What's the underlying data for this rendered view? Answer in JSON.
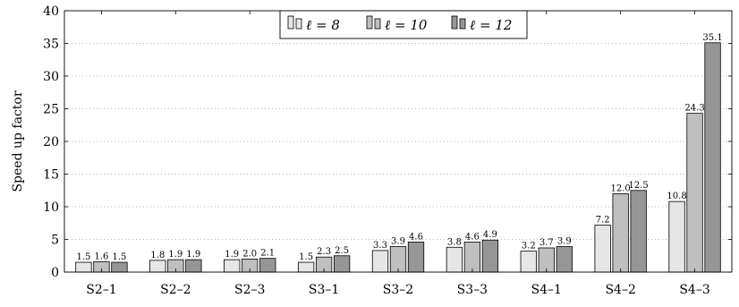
{
  "chart_data": {
    "type": "bar",
    "title": "",
    "xlabel": "",
    "ylabel": "Speed up factor",
    "ylim": [
      0,
      40
    ],
    "yticks": [
      0,
      5,
      10,
      15,
      20,
      25,
      30,
      35,
      40
    ],
    "grid": "horizontal dotted",
    "legend_position": "top-center",
    "categories": [
      "S2–1",
      "S2–2",
      "S2–3",
      "S3–1",
      "S3–2",
      "S3–3",
      "S4–1",
      "S4–2",
      "S4–3"
    ],
    "series": [
      {
        "name": "ℓ = 8",
        "color": "#e6e6e6",
        "values": [
          1.5,
          1.8,
          1.9,
          1.5,
          3.3,
          3.8,
          3.2,
          7.2,
          10.8
        ],
        "labels": [
          "1.5",
          "1.8",
          "1.9",
          "1.5",
          "3.3",
          "3.8",
          "3.2",
          "7.2",
          "10.8"
        ]
      },
      {
        "name": "ℓ = 10",
        "color": "#bfbfbf",
        "values": [
          1.6,
          1.9,
          2.0,
          2.3,
          3.9,
          4.6,
          3.7,
          12.0,
          24.3
        ],
        "labels": [
          "1.6",
          "1.9",
          "2.0",
          "2.3",
          "3.9",
          "4.6",
          "3.7",
          "12.0",
          "24.3"
        ]
      },
      {
        "name": "ℓ = 12",
        "color": "#969696",
        "values": [
          1.5,
          1.9,
          2.1,
          2.5,
          4.6,
          4.9,
          3.9,
          12.5,
          35.1
        ],
        "labels": [
          "1.5",
          "1.9",
          "2.1",
          "2.5",
          "4.6",
          "4.9",
          "3.9",
          "12.5",
          "35.1"
        ]
      }
    ]
  }
}
